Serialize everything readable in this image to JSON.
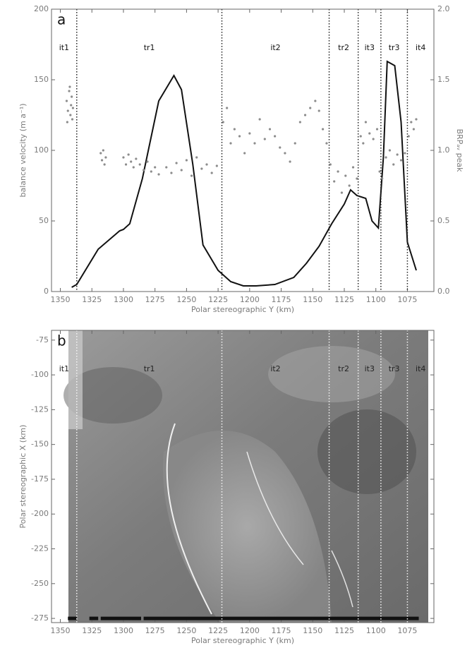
{
  "chart_data": [
    {
      "type": "line",
      "panel_label": "a",
      "xlabel": "Polar stereographic Y (km)",
      "ylabel": "balance velocity (m a⁻¹)",
      "y2label": "BRPₐᵥ peak",
      "xlim": [
        1357,
        1054
      ],
      "xticks": [
        1350,
        1325,
        1300,
        1275,
        1250,
        1225,
        1200,
        1175,
        1150,
        1125,
        1100,
        1075
      ],
      "ylim": [
        0,
        200
      ],
      "yticks": [
        0,
        50,
        100,
        150,
        200
      ],
      "y2lim": [
        0,
        2
      ],
      "y2ticks": [
        {
          "value": 0,
          "label": "0.0"
        },
        {
          "value": 0.5,
          "label": "0.5"
        },
        {
          "value": 1,
          "label": "1.0"
        },
        {
          "value": 1.5,
          "label": "1.5"
        },
        {
          "value": 2,
          "label": "2.0"
        }
      ],
      "boundaries": [
        1337,
        1222,
        1137,
        1114,
        1096,
        1075
      ],
      "segments": [
        "it1",
        "tr1",
        "it2",
        "tr2",
        "it3",
        "tr3",
        "it4"
      ],
      "series": [
        {
          "type": "line",
          "color": "#111111",
          "x": [
            1341,
            1337,
            1320,
            1303,
            1300,
            1295,
            1285,
            1272,
            1260,
            1254,
            1245,
            1237,
            1225,
            1215,
            1205,
            1195,
            1180,
            1165,
            1155,
            1145,
            1135,
            1125,
            1120,
            1115,
            1108,
            1103,
            1098,
            1094,
            1091,
            1085,
            1080,
            1075,
            1068
          ],
          "values": [
            3,
            5,
            30,
            43,
            44,
            48,
            80,
            135,
            153,
            143,
            90,
            33,
            15,
            7,
            4,
            4,
            5,
            10,
            20,
            32,
            48,
            62,
            72,
            68,
            66,
            50,
            45,
            95,
            163,
            160,
            120,
            35,
            15
          ]
        },
        {
          "type": "scatter",
          "color": "#8c8c8c",
          "axis": "y2",
          "x": [
            1345,
            1344,
            1343,
            1342,
            1341,
            1340,
            1344.5,
            1342.5,
            1341.5,
            1340.5,
            1318,
            1317,
            1316,
            1315,
            1314,
            1300,
            1298,
            1296,
            1294,
            1292,
            1290,
            1287,
            1284,
            1281,
            1278,
            1275,
            1272,
            1266,
            1262,
            1258,
            1254,
            1250,
            1246,
            1242,
            1238,
            1234,
            1230,
            1226,
            1221,
            1218,
            1215,
            1212,
            1208,
            1204,
            1200,
            1196,
            1192,
            1188,
            1184,
            1180,
            1176,
            1172,
            1168,
            1164,
            1160,
            1156,
            1152,
            1148,
            1145,
            1142,
            1139,
            1136,
            1133,
            1130,
            1127,
            1124,
            1121,
            1118,
            1115,
            1112,
            1110,
            1108,
            1105,
            1102,
            1099,
            1097,
            1095,
            1092,
            1089,
            1086,
            1083,
            1080,
            1077,
            1074,
            1072,
            1070,
            1068
          ],
          "values": [
            1.35,
            1.28,
            1.42,
            1.25,
            1.38,
            1.3,
            1.2,
            1.45,
            1.32,
            1.22,
            0.98,
            0.93,
            1.0,
            0.9,
            0.95,
            0.95,
            0.9,
            0.97,
            0.92,
            0.88,
            0.94,
            0.9,
            0.86,
            0.92,
            0.85,
            0.88,
            0.83,
            0.88,
            0.84,
            0.91,
            0.86,
            0.93,
            0.82,
            0.95,
            0.87,
            0.9,
            0.84,
            0.89,
            1.2,
            1.3,
            1.05,
            1.15,
            1.1,
            0.98,
            1.12,
            1.05,
            1.22,
            1.08,
            1.15,
            1.1,
            1.02,
            0.98,
            0.92,
            1.05,
            1.2,
            1.25,
            1.3,
            1.35,
            1.28,
            1.15,
            1.05,
            0.9,
            0.78,
            0.85,
            0.7,
            0.82,
            0.75,
            0.88,
            0.8,
            1.1,
            1.05,
            1.2,
            1.12,
            1.08,
            1.15,
            0.85,
            0.8,
            0.95,
            1.0,
            0.9,
            0.97,
            0.93,
            0.98,
            1.1,
            1.2,
            1.15,
            1.22
          ]
        }
      ]
    },
    {
      "type": "image",
      "panel_label": "b",
      "xlabel": "Polar stereographic Y (km)",
      "ylabel": "Polar stereographic X (km)",
      "xlim": [
        1357,
        1054
      ],
      "xticks": [
        1350,
        1325,
        1300,
        1275,
        1250,
        1225,
        1200,
        1175,
        1150,
        1125,
        1100,
        1075
      ],
      "ylim": [
        -278,
        -68
      ],
      "yticks": [
        -75,
        -100,
        -125,
        -150,
        -175,
        -200,
        -225,
        -250,
        -275
      ],
      "boundaries": [
        1337,
        1222,
        1137,
        1114,
        1096,
        1075
      ],
      "segments": [
        "it1",
        "tr1",
        "it2",
        "tr2",
        "it3",
        "tr3",
        "it4"
      ],
      "track_y": -275,
      "track_segments": [
        [
          1344,
          1337
        ],
        [
          1327,
          1320
        ],
        [
          1318,
          1286
        ],
        [
          1284,
          1066
        ]
      ]
    }
  ]
}
